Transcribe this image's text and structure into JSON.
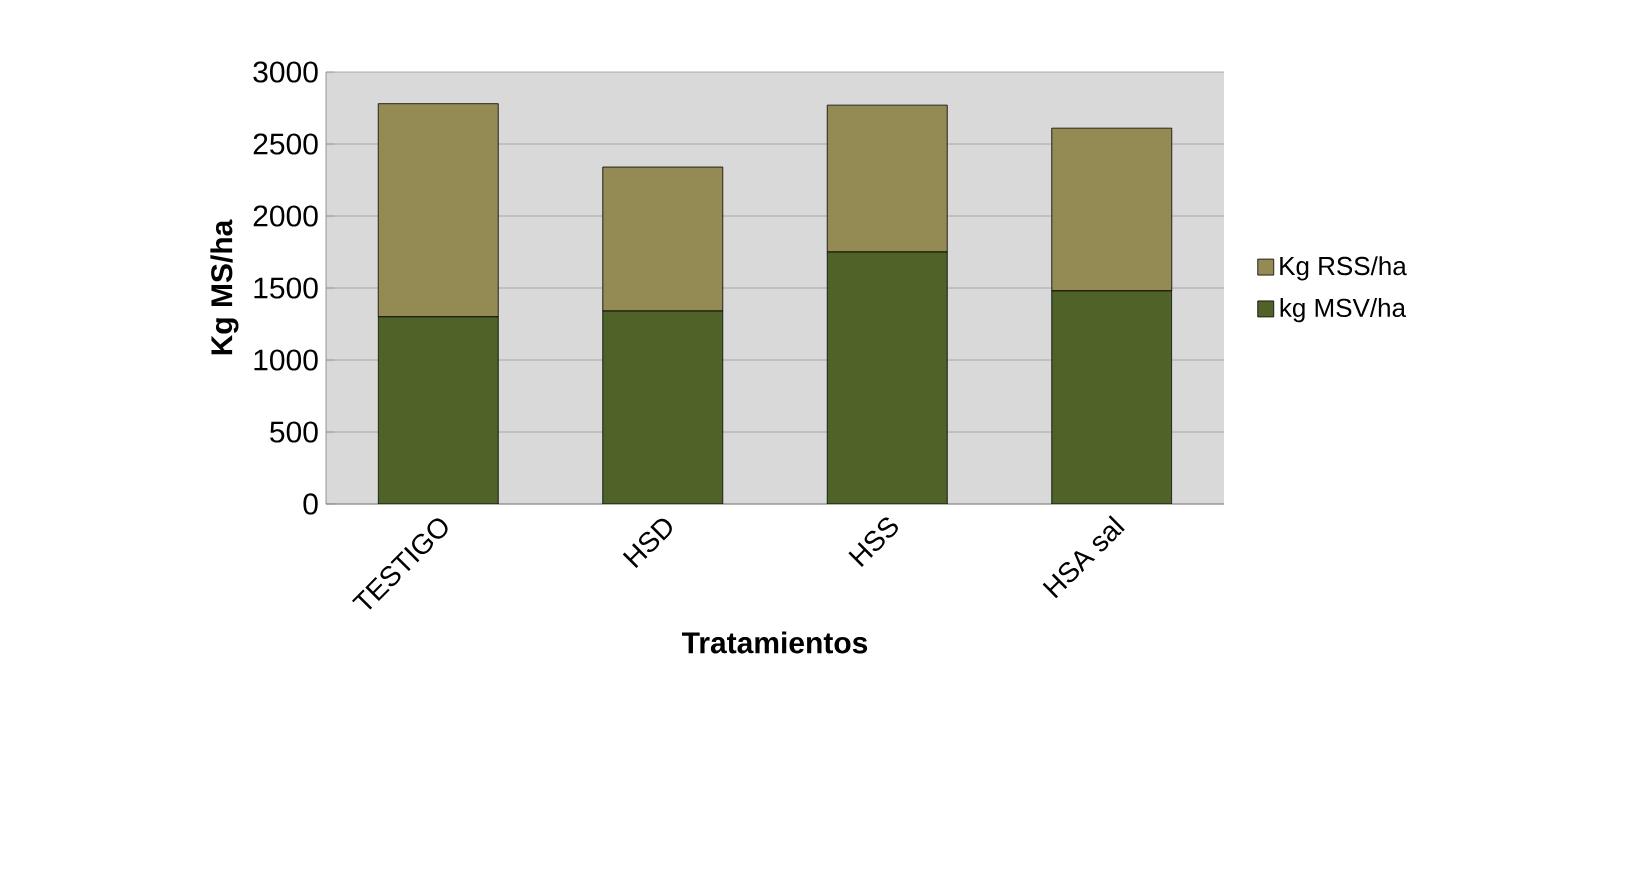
{
  "chart_data": {
    "type": "bar",
    "stacked": true,
    "xlabel": "Tratamientos",
    "ylabel": "Kg MS/ha",
    "categories": [
      "TESTIGO",
      "HSD",
      "HSS",
      "HSA sal"
    ],
    "series": [
      {
        "name": "kg MSV/ha",
        "color": "#4f6228",
        "values": [
          1300,
          1340,
          1750,
          1480
        ]
      },
      {
        "name": "Kg RSS/ha",
        "color": "#948a54",
        "values": [
          1480,
          1000,
          1020,
          1130
        ]
      }
    ],
    "ylim": [
      0,
      3000
    ],
    "yticks": [
      0,
      500,
      1000,
      1500,
      2000,
      2500,
      3000
    ],
    "grid": "y",
    "legend": "right"
  }
}
